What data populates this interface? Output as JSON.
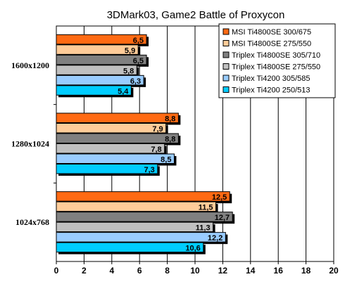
{
  "chart_data": {
    "type": "bar",
    "orientation": "horizontal",
    "title": "3DMark03, Game2 Battle of Proxycon",
    "categories": [
      "1600x1200",
      "1280x1024",
      "1024x768"
    ],
    "series": [
      {
        "name": "MSI Ti4800SE 300/675",
        "values": [
          6.5,
          8.8,
          12.5
        ],
        "labels": [
          "6,5",
          "8,8",
          "12,5"
        ],
        "color": "#ff6a13"
      },
      {
        "name": "MSI Ti4800SE 275/550",
        "values": [
          5.9,
          7.9,
          11.5
        ],
        "labels": [
          "5,9",
          "7,9",
          "11,5"
        ],
        "color": "#ffcc99"
      },
      {
        "name": "Triplex Ti4800SE 305/710",
        "values": [
          6.5,
          8.8,
          12.7
        ],
        "labels": [
          "6,5",
          "8,8",
          "12,7"
        ],
        "color": "#808080"
      },
      {
        "name": "Triplex Ti4800SE 275/550",
        "values": [
          5.8,
          7.8,
          11.3
        ],
        "labels": [
          "5,8",
          "7,8",
          "11,3"
        ],
        "color": "#c0c0c0"
      },
      {
        "name": "Triplex Ti4200 305/585",
        "values": [
          6.3,
          8.5,
          12.2
        ],
        "labels": [
          "6,3",
          "8,5",
          "12,2"
        ],
        "color": "#99ccff"
      },
      {
        "name": "Triplex Ti4200 250/513",
        "values": [
          5.4,
          7.3,
          10.6
        ],
        "labels": [
          "5,4",
          "7,3",
          "10,6"
        ],
        "color": "#00ccff"
      }
    ],
    "xlim": [
      0,
      20
    ],
    "xticks": [
      "0",
      "2",
      "4",
      "6",
      "8",
      "10",
      "12",
      "14",
      "16",
      "18",
      "20"
    ],
    "grid": true,
    "legend": "top-right"
  }
}
